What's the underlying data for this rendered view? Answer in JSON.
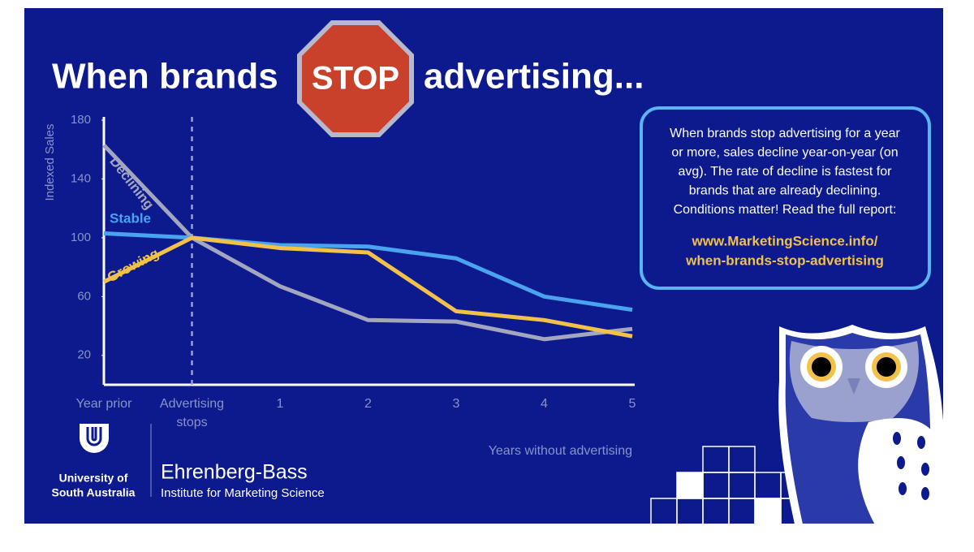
{
  "header": {
    "before": "When brands",
    "stop": "STOP",
    "after": "advertising..."
  },
  "chart_data": {
    "type": "line",
    "ylabel": "Indexed Sales",
    "xlabel": "Years without advertising",
    "categories": [
      "Year prior",
      "Advertising stops",
      "1",
      "2",
      "3",
      "4",
      "5"
    ],
    "ylim": [
      0,
      180
    ],
    "yticks": [
      20,
      60,
      100,
      140,
      180
    ],
    "series": [
      {
        "name": "Declining",
        "color": "#a3a6bf",
        "values": [
          163,
          100,
          67,
          44,
          43,
          31,
          38
        ]
      },
      {
        "name": "Stable",
        "color": "#4aa3ef",
        "values": [
          103,
          100,
          95,
          94,
          86,
          60,
          51
        ]
      },
      {
        "name": "Growing",
        "color": "#f2c14a",
        "values": [
          70,
          100,
          93,
          90,
          50,
          44,
          33
        ]
      }
    ]
  },
  "info_box": {
    "text_lines": [
      "When brands stop advertising for a year",
      "or more, sales decline year-on-year (on",
      "avg). The rate of decline is fastest for",
      "brands that are already declining.",
      "Conditions matter! Read the full report:"
    ],
    "link_lines": [
      "www.MarketingScience.info/",
      "when-brands-stop-advertising"
    ]
  },
  "logos": {
    "unisa": [
      "University of",
      "South Australia"
    ],
    "ehrenberg": "Ehrenberg-Bass",
    "institute": "Institute for Marketing Science"
  }
}
